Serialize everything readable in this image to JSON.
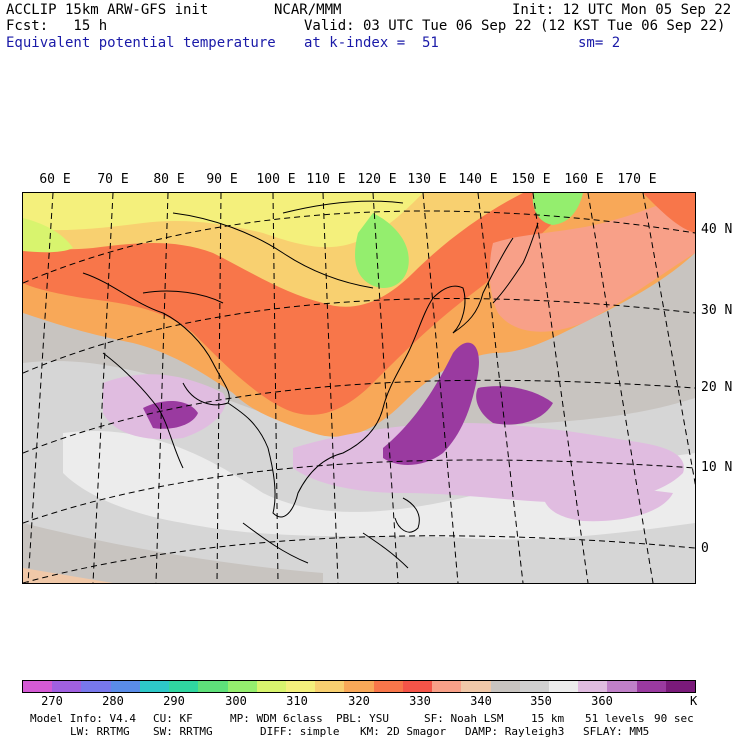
{
  "header": {
    "model_line": "ACCLIP 15km ARW-GFS init",
    "org": "NCAR/MMM",
    "init": "Init: 12 UTC Mon 05 Sep 22",
    "fcst": "Fcst:   15 h",
    "valid": "Valid: 03 UTC Tue 06 Sep 22 (12 KST Tue 06 Sep 22)",
    "field": "Equivalent potential temperature",
    "level": "at k-index =  51",
    "smooth": "sm= 2"
  },
  "map": {
    "lon_labels": [
      "60 E",
      "70 E",
      "80 E",
      "90 E",
      "100 E",
      "110 E",
      "120 E",
      "130 E",
      "140 E",
      "150 E",
      "160 E",
      "170 E"
    ],
    "lat_labels": [
      "40 N",
      "30 N",
      "20 N",
      "10 N",
      "0"
    ]
  },
  "colorbar": {
    "colors": [
      "#d45ad4",
      "#a060e0",
      "#7878ec",
      "#5a8ce8",
      "#2ec8c8",
      "#30d6a0",
      "#5ee07a",
      "#94ee6e",
      "#d8f46e",
      "#f4f07c",
      "#f8d070",
      "#f8a858",
      "#f8764a",
      "#f45448",
      "#f8a088",
      "#f0c8a8",
      "#c8c4c0",
      "#d0d0d0",
      "#ececec",
      "#e0bce0",
      "#c080c8",
      "#9a3aa0",
      "#7a1a7a"
    ],
    "ticks": [
      "270",
      "280",
      "290",
      "300",
      "310",
      "320",
      "330",
      "340",
      "350",
      "360"
    ],
    "unit": "K"
  },
  "footer": {
    "line1_a": "Model Info: V4.4",
    "line1_b": "CU: KF",
    "line1_c": "MP: WDM 6class",
    "line1_d": "PBL: YSU",
    "line1_e": "SF: Noah LSM",
    "line1_f": "15 km",
    "line1_g": "51 levels",
    "line1_h": "90 sec",
    "line2_a": "LW: RRTMG",
    "line2_b": "SW: RRTMG",
    "line2_c": "DIFF: simple",
    "line2_d": "KM: 2D Smagor",
    "line2_e": "DAMP: Rayleigh3",
    "line2_f": "SFLAY: MM5"
  }
}
